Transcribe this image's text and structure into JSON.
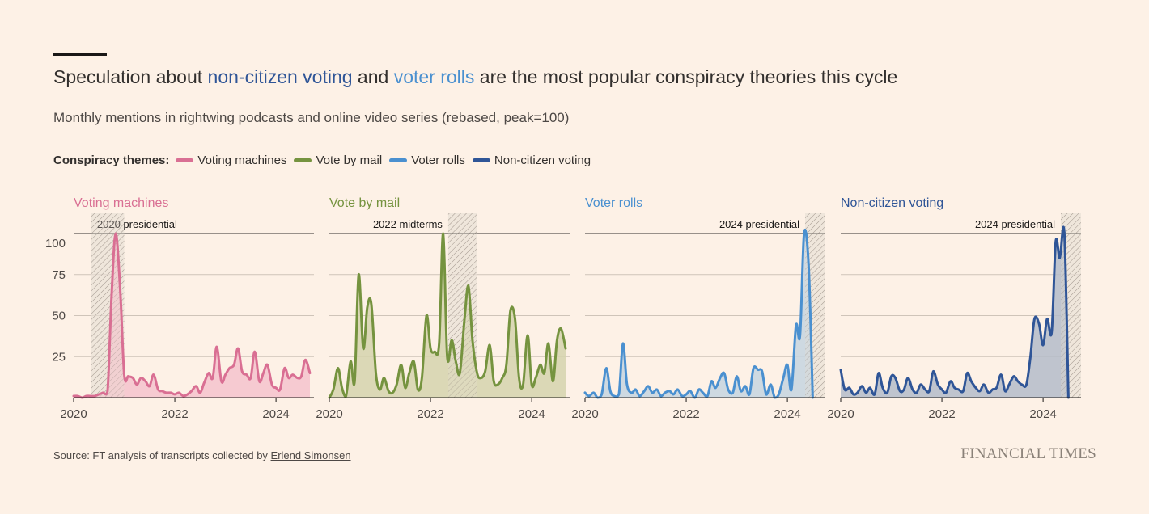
{
  "title": {
    "pre": "Speculation about ",
    "highlight1": "non-citizen voting",
    "mid": " and ",
    "highlight2": "voter rolls",
    "post": " are the most popular conspiracy theories this cycle"
  },
  "subtitle": "Monthly mentions in rightwing podcasts and online video series (rebased, peak=100)",
  "legend": {
    "label": "Conspiracy themes:",
    "items": [
      "Voting machines",
      "Vote by mail",
      "Voter rolls",
      "Non-citizen voting"
    ]
  },
  "source": {
    "prefix": "Source: FT analysis of transcripts collected by ",
    "link": "Erlend Simonsen"
  },
  "brand": "FINANCIAL TIMES",
  "colors": {
    "voting_machines": "#d96f93",
    "vote_by_mail": "#75933f",
    "voter_rolls": "#4a90d0",
    "non_citizen": "#2f5597",
    "highlight_nc": "#2f5597",
    "highlight_vr": "#4a90d0",
    "background": "#fdf1e6"
  },
  "chart_data": {
    "type": "area",
    "title": "Monthly mentions in rightwing podcasts and online video series (rebased, peak=100)",
    "ylim": [
      0,
      100
    ],
    "yticks": [
      25,
      50,
      75,
      100
    ],
    "xlim": [
      2020,
      2024.75
    ],
    "xticks": [
      2020,
      2022,
      2024
    ],
    "shared_x_months_from_2020_01": "x values are decimal years; series sampled monthly",
    "panels": [
      {
        "name": "Voting machines",
        "color": "#d96f93",
        "fill": "#f4c3cc",
        "event": {
          "label": "2020 presidential",
          "start": 2020.35,
          "end": 2021.0,
          "label_align": "left"
        },
        "x": [
          2020.0,
          2020.08,
          2020.17,
          2020.25,
          2020.33,
          2020.42,
          2020.5,
          2020.58,
          2020.67,
          2020.75,
          2020.83,
          2020.92,
          2021.0,
          2021.08,
          2021.17,
          2021.25,
          2021.33,
          2021.42,
          2021.5,
          2021.58,
          2021.67,
          2021.75,
          2021.83,
          2021.92,
          2022.0,
          2022.08,
          2022.17,
          2022.25,
          2022.33,
          2022.42,
          2022.5,
          2022.58,
          2022.67,
          2022.75,
          2022.83,
          2022.92,
          2023.0,
          2023.08,
          2023.17,
          2023.25,
          2023.33,
          2023.42,
          2023.5,
          2023.58,
          2023.67,
          2023.75,
          2023.83,
          2023.92,
          2024.0,
          2024.08,
          2024.17,
          2024.25,
          2024.33,
          2024.42,
          2024.5,
          2024.58,
          2024.67
        ],
        "values": [
          1,
          1,
          0,
          1,
          1,
          1,
          2,
          3,
          4,
          62,
          100,
          66,
          14,
          13,
          12,
          8,
          12,
          10,
          7,
          14,
          5,
          4,
          3,
          3,
          2,
          3,
          1,
          2,
          4,
          7,
          3,
          9,
          15,
          12,
          31,
          10,
          14,
          18,
          20,
          30,
          16,
          14,
          12,
          28,
          10,
          15,
          20,
          8,
          6,
          5,
          18,
          12,
          14,
          12,
          13,
          23,
          15
        ]
      },
      {
        "name": "Vote by mail",
        "color": "#75933f",
        "fill": "#d5d4ad",
        "event": {
          "label": "2022 midterms",
          "start": 2022.35,
          "end": 2022.92,
          "label_align": "right"
        },
        "x": [
          2020.0,
          2020.08,
          2020.17,
          2020.25,
          2020.33,
          2020.42,
          2020.5,
          2020.58,
          2020.67,
          2020.75,
          2020.83,
          2020.92,
          2021.0,
          2021.08,
          2021.17,
          2021.25,
          2021.33,
          2021.42,
          2021.5,
          2021.58,
          2021.67,
          2021.75,
          2021.83,
          2021.92,
          2022.0,
          2022.08,
          2022.17,
          2022.25,
          2022.33,
          2022.42,
          2022.5,
          2022.58,
          2022.67,
          2022.75,
          2022.83,
          2022.92,
          2023.0,
          2023.08,
          2023.17,
          2023.25,
          2023.33,
          2023.42,
          2023.5,
          2023.58,
          2023.67,
          2023.75,
          2023.83,
          2023.92,
          2024.0,
          2024.08,
          2024.17,
          2024.25,
          2024.33,
          2024.42,
          2024.5,
          2024.58,
          2024.67
        ],
        "values": [
          0,
          5,
          18,
          6,
          1,
          22,
          10,
          75,
          30,
          55,
          57,
          15,
          5,
          12,
          4,
          3,
          8,
          20,
          6,
          15,
          22,
          5,
          12,
          50,
          30,
          28,
          33,
          100,
          25,
          35,
          22,
          15,
          47,
          68,
          35,
          15,
          12,
          16,
          32,
          10,
          8,
          12,
          20,
          53,
          48,
          12,
          8,
          38,
          8,
          12,
          20,
          15,
          33,
          10,
          35,
          42,
          30
        ]
      },
      {
        "name": "Voter rolls",
        "color": "#4a90d0",
        "fill": "#c6d5df",
        "event": {
          "label": "2024 presidential",
          "start": 2024.35,
          "end": 2024.75,
          "label_align": "right"
        },
        "x": [
          2020.0,
          2020.08,
          2020.17,
          2020.25,
          2020.33,
          2020.42,
          2020.5,
          2020.58,
          2020.67,
          2020.75,
          2020.83,
          2020.92,
          2021.0,
          2021.08,
          2021.17,
          2021.25,
          2021.33,
          2021.42,
          2021.5,
          2021.58,
          2021.67,
          2021.75,
          2021.83,
          2021.92,
          2022.0,
          2022.08,
          2022.17,
          2022.25,
          2022.33,
          2022.42,
          2022.5,
          2022.58,
          2022.67,
          2022.75,
          2022.83,
          2022.92,
          2023.0,
          2023.08,
          2023.17,
          2023.25,
          2023.33,
          2023.42,
          2023.5,
          2023.58,
          2023.67,
          2023.75,
          2023.83,
          2023.92,
          2024.0,
          2024.08,
          2024.17,
          2024.25,
          2024.33,
          2024.42,
          2024.5,
          2024.58,
          2024.67
        ],
        "values": [
          3,
          1,
          3,
          0,
          2,
          18,
          4,
          1,
          2,
          33,
          8,
          3,
          5,
          1,
          4,
          7,
          3,
          5,
          1,
          3,
          4,
          2,
          5,
          1,
          2,
          4,
          0,
          5,
          3,
          1,
          10,
          6,
          12,
          15,
          5,
          3,
          13,
          4,
          7,
          2,
          18,
          17,
          16,
          2,
          8,
          0,
          2,
          12,
          20,
          5,
          44,
          38,
          100,
          80,
          0,
          0,
          0
        ]
      },
      {
        "name": "Non-citizen voting",
        "color": "#2f5597",
        "fill": "#b4bcc9",
        "event": {
          "label": "2024 presidential",
          "start": 2024.35,
          "end": 2024.75,
          "label_align": "right"
        },
        "x": [
          2020.0,
          2020.08,
          2020.17,
          2020.25,
          2020.33,
          2020.42,
          2020.5,
          2020.58,
          2020.67,
          2020.75,
          2020.83,
          2020.92,
          2021.0,
          2021.08,
          2021.17,
          2021.25,
          2021.33,
          2021.42,
          2021.5,
          2021.58,
          2021.67,
          2021.75,
          2021.83,
          2021.92,
          2022.0,
          2022.08,
          2022.17,
          2022.25,
          2022.33,
          2022.42,
          2022.5,
          2022.58,
          2022.67,
          2022.75,
          2022.83,
          2022.92,
          2023.0,
          2023.08,
          2023.17,
          2023.25,
          2023.33,
          2023.42,
          2023.5,
          2023.58,
          2023.67,
          2023.75,
          2023.83,
          2023.92,
          2024.0,
          2024.08,
          2024.17,
          2024.25,
          2024.33,
          2024.42,
          2024.5,
          2024.58,
          2024.67
        ],
        "values": [
          17,
          5,
          6,
          2,
          3,
          7,
          3,
          6,
          2,
          15,
          6,
          3,
          13,
          12,
          4,
          5,
          12,
          5,
          3,
          8,
          5,
          4,
          16,
          8,
          5,
          3,
          10,
          6,
          5,
          4,
          15,
          10,
          6,
          4,
          8,
          3,
          5,
          6,
          14,
          4,
          8,
          13,
          10,
          8,
          8,
          25,
          48,
          45,
          32,
          48,
          40,
          95,
          85,
          100,
          0,
          0,
          0
        ]
      }
    ]
  }
}
